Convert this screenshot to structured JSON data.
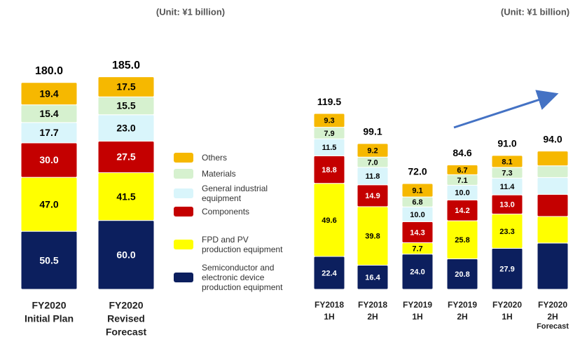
{
  "chart_data": [
    {
      "type": "stacked_bar",
      "subtitle": "(Unit: ¥1 billion)",
      "categories": [
        [
          "FY2020",
          "Initial Plan"
        ],
        [
          "FY2020",
          "Revised",
          "Forecast"
        ]
      ],
      "totals": [
        180,
        185
      ],
      "total_labels": [
        "180.0",
        "185.0"
      ],
      "series": [
        {
          "name": "Semiconductor and\nelectronic device\nproduction equipment",
          "color": "#0c1f5e",
          "label_color": "#ffffff",
          "values": [
            50.5,
            60
          ],
          "value_labels": [
            "50.5",
            "60.0"
          ]
        },
        {
          "name": "FPD and PV\nproduction equipment",
          "color": "#ffff00",
          "label_color": "#000000",
          "values": [
            47,
            41.5
          ],
          "value_labels": [
            "47.0",
            "41.5"
          ]
        },
        {
          "name": "Components",
          "color": "#c40000",
          "label_color": "#ffffff",
          "values": [
            30,
            27.5
          ],
          "value_labels": [
            "30.0",
            "27.5"
          ]
        },
        {
          "name": "General industrial\nequipment",
          "color": "#d9f5fb",
          "label_color": "#000000",
          "values": [
            17.7,
            23
          ],
          "value_labels": [
            "17.7",
            "23.0"
          ]
        },
        {
          "name": "Materials",
          "color": "#d6f1cf",
          "label_color": "#000000",
          "values": [
            15.4,
            15.5
          ],
          "value_labels": [
            "15.4",
            "15.5"
          ]
        },
        {
          "name": "Others",
          "color": "#f6b800",
          "label_color": "#000000",
          "values": [
            19.4,
            17.5
          ],
          "value_labels": [
            "19.4",
            "17.5"
          ]
        }
      ]
    },
    {
      "type": "stacked_bar",
      "subtitle": "(Unit: ¥1 billion)",
      "categories": [
        [
          "FY2018",
          "1H"
        ],
        [
          "FY2018",
          "2H"
        ],
        [
          "FY2019",
          "1H"
        ],
        [
          "FY2019",
          "2H"
        ],
        [
          "FY2020",
          "1H"
        ],
        [
          "FY2020",
          "2H",
          "Forecast"
        ]
      ],
      "totals": [
        119.5,
        99.1,
        72,
        84.6,
        91,
        94
      ],
      "total_labels": [
        "119.5",
        "99.1",
        "72.0",
        "84.6",
        "91.0",
        "94.0"
      ],
      "series": [
        {
          "color": "#0c1f5e",
          "label_color": "#ffffff",
          "values": [
            22.4,
            16.4,
            24,
            20.8,
            27.9,
            31.5
          ],
          "value_labels": [
            "22.4",
            "16.4",
            "24.0",
            "20.8",
            "27.9",
            null
          ]
        },
        {
          "color": "#ffff00",
          "label_color": "#000000",
          "values": [
            49.6,
            39.8,
            7.7,
            25.8,
            23.3,
            18
          ],
          "value_labels": [
            "49.6",
            "39.8",
            "7.7",
            "25.8",
            "23.3",
            null
          ]
        },
        {
          "color": "#c40000",
          "label_color": "#ffffff",
          "values": [
            18.8,
            14.9,
            14.3,
            14.2,
            13,
            15
          ],
          "value_labels": [
            "18.8",
            "14.9",
            "14.3",
            "14.2",
            "13.0",
            null
          ]
        },
        {
          "color": "#d9f5fb",
          "label_color": "#000000",
          "values": [
            11.5,
            11.8,
            10,
            10,
            11.4,
            11.5
          ],
          "value_labels": [
            "11.5",
            "11.8",
            "10.0",
            "10.0",
            "11.4",
            null
          ]
        },
        {
          "color": "#d6f1cf",
          "label_color": "#000000",
          "values": [
            7.9,
            7,
            6.8,
            7.1,
            7.3,
            8
          ],
          "value_labels": [
            "7.9",
            "7.0",
            "6.8",
            "7.1",
            "7.3",
            null
          ]
        },
        {
          "color": "#f6b800",
          "label_color": "#000000",
          "values": [
            9.3,
            9.2,
            9.1,
            6.7,
            8.1,
            10
          ],
          "value_labels": [
            "9.3",
            "9.2",
            "9.1",
            "6.7",
            "8.1",
            null
          ]
        }
      ]
    }
  ]
}
